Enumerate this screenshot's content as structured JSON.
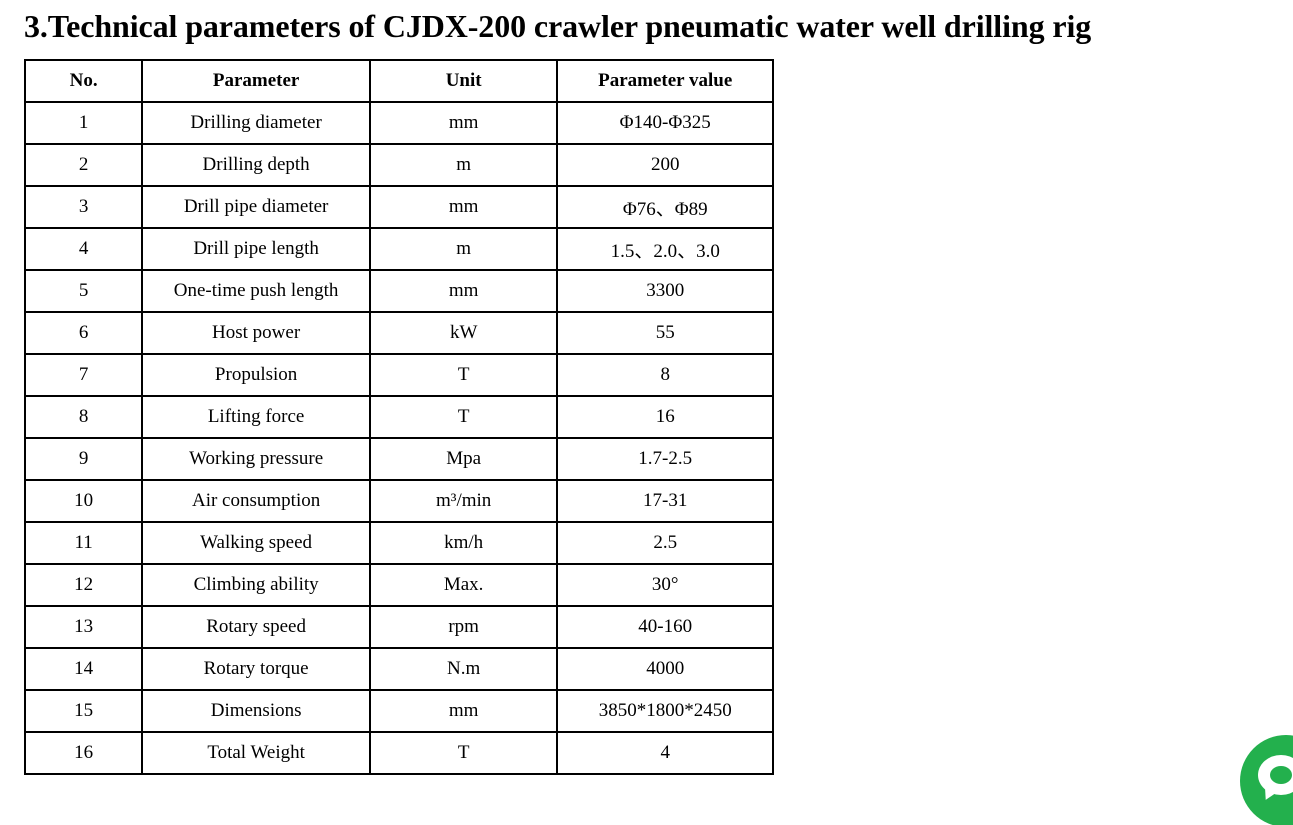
{
  "page": {
    "title": "3.Technical parameters of CJDX-200 crawler pneumatic water well drilling rig"
  },
  "table": {
    "headers": [
      "No.",
      "Parameter",
      "Unit",
      "Parameter value"
    ],
    "rows": [
      [
        "1",
        "Drilling diameter",
        "mm",
        "Φ140-Φ325"
      ],
      [
        "2",
        "Drilling depth",
        "m",
        "200"
      ],
      [
        "3",
        "Drill pipe diameter",
        "mm",
        "Φ76、Φ89"
      ],
      [
        "4",
        "Drill pipe length",
        "m",
        "1.5、2.0、3.0"
      ],
      [
        "5",
        "One-time push length",
        "mm",
        "3300"
      ],
      [
        "6",
        "Host power",
        "kW",
        "55"
      ],
      [
        "7",
        "Propulsion",
        "T",
        "8"
      ],
      [
        "8",
        "Lifting force",
        "T",
        "16"
      ],
      [
        "9",
        "Working pressure",
        "Mpa",
        "1.7-2.5"
      ],
      [
        "10",
        "Air consumption",
        "m³/min",
        "17-31"
      ],
      [
        "11",
        "Walking speed",
        "km/h",
        "2.5"
      ],
      [
        "12",
        "Climbing ability",
        "Max.",
        "30°"
      ],
      [
        "13",
        "Rotary speed",
        "rpm",
        "40-160"
      ],
      [
        "14",
        "Rotary torque",
        "N.m",
        "4000"
      ],
      [
        "15",
        "Dimensions",
        "mm",
        "3850*1800*2450"
      ],
      [
        "16",
        "Total Weight",
        "T",
        "4"
      ]
    ]
  },
  "chat_widget": {
    "icon": "chat-bubble-icon",
    "color": "#23b04d"
  }
}
